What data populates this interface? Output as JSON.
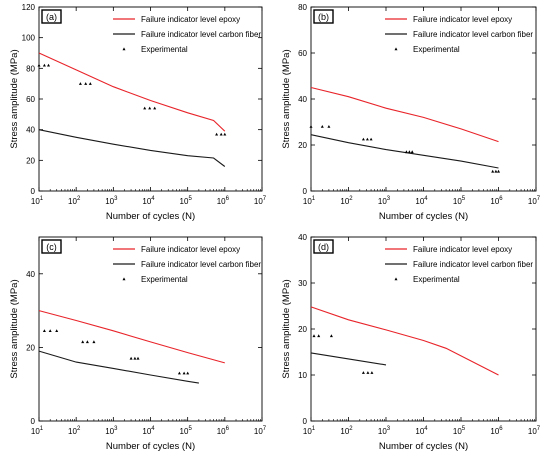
{
  "legend_labels": {
    "epoxy": "Failure indicator level epoxy",
    "carbon": "Failure indicator level carbon fiber",
    "experimental": "Experimental"
  },
  "colors": {
    "epoxy": "#e8242a",
    "carbon": "#1a1a1a",
    "experimental": "#000000"
  },
  "chart_data": [
    {
      "type": "line",
      "panel_label": "(a)",
      "xlabel": "Number of cycles (N)",
      "ylabel": "Stress amplitude (MPa)",
      "xscale": "log",
      "xlim": [
        10,
        10000000
      ],
      "ylim": [
        0,
        120
      ],
      "xticks": [
        10,
        100,
        1000,
        10000,
        100000,
        1000000,
        10000000
      ],
      "xtick_labels": [
        {
          "b": "10",
          "e": "1"
        },
        {
          "b": "10",
          "e": "2"
        },
        {
          "b": "10",
          "e": "3"
        },
        {
          "b": "10",
          "e": "4"
        },
        {
          "b": "10",
          "e": "5"
        },
        {
          "b": "10",
          "e": "6"
        },
        {
          "b": "10",
          "e": "7"
        }
      ],
      "yticks": [
        0,
        20,
        40,
        60,
        80,
        100,
        120
      ],
      "ytick_labels": [
        "0",
        "20",
        "40",
        "60",
        "80",
        "100",
        "120"
      ],
      "legend_position": "top-right",
      "series": [
        {
          "name": "Failure indicator level epoxy",
          "kind": "line",
          "color": "#e8242a",
          "x": [
            10,
            100,
            1000,
            10000,
            100000,
            500000,
            1000000
          ],
          "y": [
            90,
            79,
            68,
            59,
            51,
            46,
            39
          ]
        },
        {
          "name": "Failure indicator level carbon fiber",
          "kind": "line",
          "color": "#1a1a1a",
          "x": [
            10,
            100,
            1000,
            10000,
            100000,
            500000,
            1000000
          ],
          "y": [
            40,
            35,
            30.5,
            26.5,
            23,
            21.5,
            16
          ]
        },
        {
          "name": "Experimental",
          "kind": "scatter",
          "color": "#000000",
          "x": [
            10,
            14,
            18,
            130,
            180,
            240,
            7000,
            9500,
            13000,
            600000,
            800000,
            1000000
          ],
          "y": [
            82,
            82,
            82,
            70,
            70,
            70,
            54,
            54,
            54,
            37,
            37,
            37
          ]
        }
      ]
    },
    {
      "type": "line",
      "panel_label": "(b)",
      "xlabel": "Number of cycles (N)",
      "ylabel": "Stress amplitude (MPa)",
      "xscale": "log",
      "xlim": [
        10,
        10000000
      ],
      "ylim": [
        0,
        80
      ],
      "xticks": [
        10,
        100,
        1000,
        10000,
        100000,
        1000000,
        10000000
      ],
      "xtick_labels": [
        {
          "b": "10",
          "e": "1"
        },
        {
          "b": "10",
          "e": "2"
        },
        {
          "b": "10",
          "e": "3"
        },
        {
          "b": "10",
          "e": "4"
        },
        {
          "b": "10",
          "e": "5"
        },
        {
          "b": "10",
          "e": "6"
        },
        {
          "b": "10",
          "e": "7"
        }
      ],
      "yticks": [
        0,
        20,
        40,
        60,
        80
      ],
      "ytick_labels": [
        "0",
        "20",
        "40",
        "60",
        "80"
      ],
      "legend_position": "top-right",
      "series": [
        {
          "name": "Failure indicator level epoxy",
          "kind": "line",
          "color": "#e8242a",
          "x": [
            10,
            100,
            1000,
            10000,
            100000,
            1000000
          ],
          "y": [
            45,
            41,
            36,
            32,
            27,
            21.5
          ]
        },
        {
          "name": "Failure indicator level carbon fiber",
          "kind": "line",
          "color": "#1a1a1a",
          "x": [
            10,
            100,
            1000,
            10000,
            100000,
            1000000
          ],
          "y": [
            24.5,
            21,
            18,
            15.5,
            13,
            10
          ]
        },
        {
          "name": "Experimental",
          "kind": "scatter",
          "color": "#000000",
          "x": [
            10,
            20,
            30,
            250,
            320,
            400,
            3500,
            4200,
            5000,
            700000,
            850000,
            1000000
          ],
          "y": [
            28,
            28,
            28,
            22.5,
            22.5,
            22.5,
            17,
            17,
            17,
            8.5,
            8.5,
            8.5
          ]
        }
      ]
    },
    {
      "type": "line",
      "panel_label": "(c)",
      "xlabel": "Number of cycles (N)",
      "ylabel": "Stress amplitude (MPa)",
      "xscale": "log",
      "xlim": [
        10,
        10000000
      ],
      "ylim": [
        0,
        50
      ],
      "xticks": [
        10,
        100,
        1000,
        10000,
        100000,
        1000000,
        10000000
      ],
      "xtick_labels": [
        {
          "b": "10",
          "e": "1"
        },
        {
          "b": "10",
          "e": "2"
        },
        {
          "b": "10",
          "e": "3"
        },
        {
          "b": "10",
          "e": "4"
        },
        {
          "b": "10",
          "e": "5"
        },
        {
          "b": "10",
          "e": "6"
        },
        {
          "b": "10",
          "e": "7"
        }
      ],
      "yticks": [
        0,
        20,
        40
      ],
      "ytick_labels": [
        "0",
        "20",
        "40"
      ],
      "legend_position": "top-right",
      "series": [
        {
          "name": "Failure indicator level epoxy",
          "kind": "line",
          "color": "#e8242a",
          "x": [
            10,
            100,
            1000,
            10000,
            100000,
            1000000
          ],
          "y": [
            30,
            27.3,
            24.5,
            21.5,
            18.6,
            15.8
          ]
        },
        {
          "name": "Failure indicator level carbon fiber",
          "kind": "line",
          "color": "#1a1a1a",
          "x": [
            10,
            100,
            1000,
            10000,
            100000,
            200000
          ],
          "y": [
            19,
            16,
            14.3,
            12.5,
            10.8,
            10.3
          ]
        },
        {
          "name": "Experimental",
          "kind": "scatter",
          "color": "#000000",
          "x": [
            14,
            20,
            30,
            150,
            200,
            300,
            3000,
            3800,
            4600,
            60000,
            80000,
            100000
          ],
          "y": [
            24.5,
            24.5,
            24.5,
            21.5,
            21.5,
            21.5,
            17,
            17,
            17,
            13,
            13,
            13
          ]
        }
      ]
    },
    {
      "type": "line",
      "panel_label": "(d)",
      "xlabel": "Number of cycles (N)",
      "ylabel": "Stress amplitude (MPa)",
      "xscale": "log",
      "xlim": [
        10,
        10000000
      ],
      "ylim": [
        0,
        40
      ],
      "xticks": [
        10,
        100,
        1000,
        10000,
        100000,
        1000000,
        10000000
      ],
      "xtick_labels": [
        {
          "b": "10",
          "e": "1"
        },
        {
          "b": "10",
          "e": "2"
        },
        {
          "b": "10",
          "e": "3"
        },
        {
          "b": "10",
          "e": "4"
        },
        {
          "b": "10",
          "e": "5"
        },
        {
          "b": "10",
          "e": "6"
        },
        {
          "b": "10",
          "e": "7"
        }
      ],
      "yticks": [
        0,
        10,
        20,
        30,
        40
      ],
      "ytick_labels": [
        "0",
        "10",
        "20",
        "30",
        "40"
      ],
      "legend_position": "top-right",
      "series": [
        {
          "name": "Failure indicator level epoxy",
          "kind": "line",
          "color": "#e8242a",
          "x": [
            10,
            100,
            1000,
            10000,
            40000,
            1000000
          ],
          "y": [
            24.8,
            22,
            19.8,
            17.5,
            15.8,
            10
          ]
        },
        {
          "name": "Failure indicator level carbon fiber",
          "kind": "line",
          "color": "#1a1a1a",
          "x": [
            10,
            100,
            1000
          ],
          "y": [
            14.8,
            13.5,
            12.2
          ]
        },
        {
          "name": "Experimental",
          "kind": "scatter",
          "color": "#000000",
          "x": [
            12,
            16,
            35,
            250,
            330,
            420
          ],
          "y": [
            18.5,
            18.5,
            18.5,
            10.5,
            10.5,
            10.5
          ]
        }
      ]
    }
  ]
}
